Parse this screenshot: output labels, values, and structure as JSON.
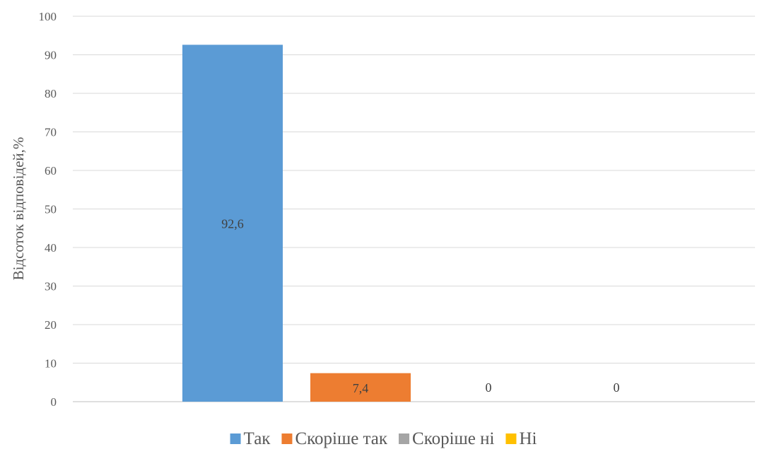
{
  "chart_data": {
    "type": "bar",
    "title": "",
    "xlabel": "",
    "ylabel": "Відсоток відповідей,%",
    "ylim": [
      0,
      100
    ],
    "yticks": [
      0,
      10,
      20,
      30,
      40,
      50,
      60,
      70,
      80,
      90,
      100
    ],
    "grid": true,
    "legend_position": "bottom",
    "series": [
      {
        "name": "Так",
        "value": 92.6,
        "label": "92,6",
        "color": "#5B9BD5"
      },
      {
        "name": "Скоріше так",
        "value": 7.4,
        "label": "7,4",
        "color": "#ED7D31"
      },
      {
        "name": "Скоріше ні",
        "value": 0,
        "label": "0",
        "color": "#A5A5A5"
      },
      {
        "name": "Ні",
        "value": 0,
        "label": "0",
        "color": "#FFC000"
      }
    ]
  }
}
